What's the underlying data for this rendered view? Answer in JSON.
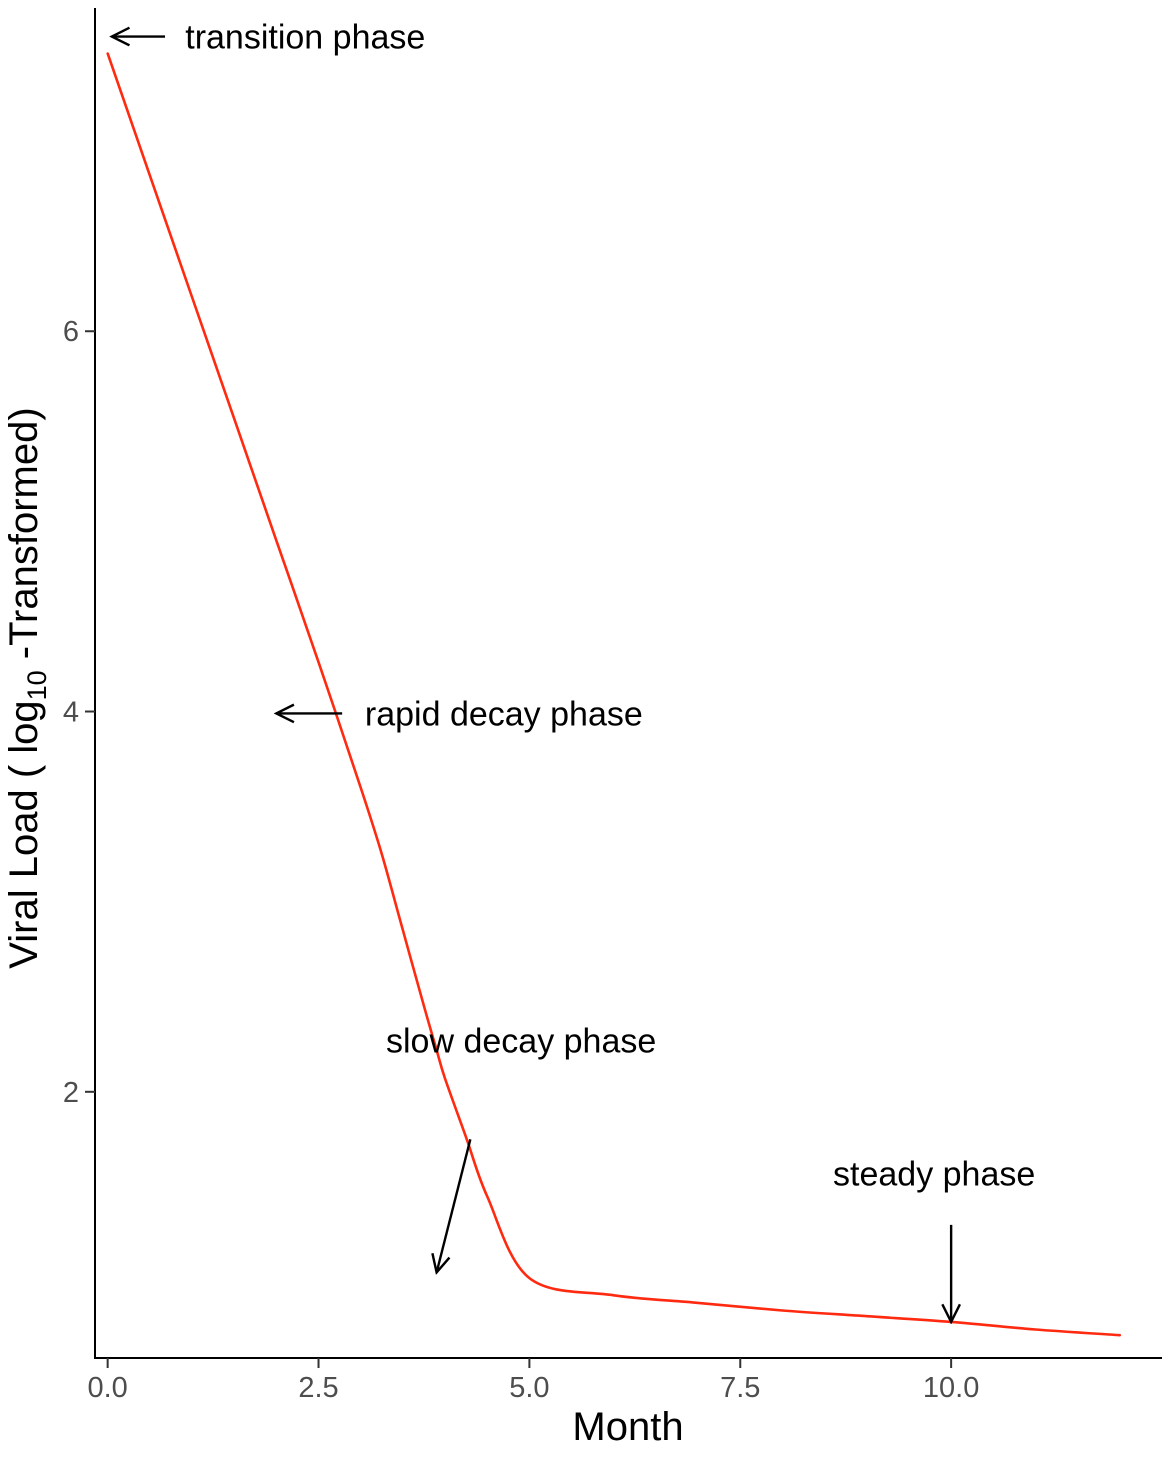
{
  "chart_data": {
    "type": "line",
    "title": "",
    "xlabel": "Month",
    "ylabel_parts": {
      "before": "Viral Load ( log",
      "subscript": "10",
      "after": " -Transformed)"
    },
    "xlim": [
      -0.15,
      12.5
    ],
    "ylim": [
      0.6,
      7.7
    ],
    "xticks": [
      0,
      2.5,
      5,
      7.5,
      10
    ],
    "xtick_labels": [
      "0.0",
      "2.5",
      "5.0",
      "7.5",
      "10.0"
    ],
    "yticks": [
      2,
      4,
      6
    ],
    "ytick_labels": [
      "2",
      "4",
      "6"
    ],
    "grid": false,
    "series": [
      {
        "color": "#ff2a10",
        "x": [
          0,
          0.5,
          1.0,
          1.5,
          2.0,
          2.5,
          3.0,
          3.25,
          3.5,
          3.75,
          3.9,
          4.0,
          4.25,
          4.5,
          5.0,
          6.0,
          7.0,
          8.0,
          9.0,
          10.0,
          11.0,
          12.0
        ],
        "y": [
          7.46,
          6.82,
          6.18,
          5.54,
          4.9,
          4.26,
          3.6,
          3.25,
          2.85,
          2.45,
          2.22,
          2.07,
          1.76,
          1.45,
          1.02,
          0.93,
          0.89,
          0.85,
          0.82,
          0.79,
          0.75,
          0.72
        ]
      }
    ],
    "annotations": [
      {
        "label": "transition phase",
        "text_x": 0.92,
        "text_y": 7.55,
        "tail_x": 0.68,
        "tail_y": 7.55,
        "head_x": 0.05,
        "head_y": 7.55
      },
      {
        "label": "rapid decay phase",
        "text_x": 3.05,
        "text_y": 3.99,
        "tail_x": 2.78,
        "tail_y": 3.99,
        "head_x": 2.0,
        "head_y": 3.99
      },
      {
        "label": "slow decay phase",
        "text_x": 3.3,
        "text_y": 2.27,
        "tail_x": 4.3,
        "tail_y": 1.75,
        "head_x": 3.9,
        "head_y": 1.05
      },
      {
        "label": "steady phase",
        "text_x": 8.6,
        "text_y": 1.57,
        "tail_x": 10.0,
        "tail_y": 1.3,
        "head_x": 10.0,
        "head_y": 0.79
      }
    ]
  }
}
